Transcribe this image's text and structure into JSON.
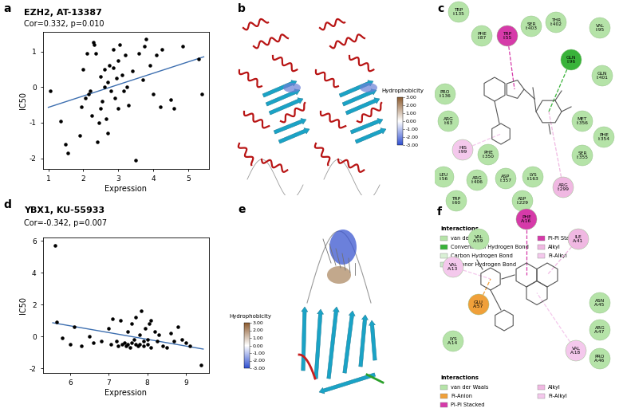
{
  "chart_data": [
    {
      "panel": "a",
      "type": "scatter",
      "title": "EZH2, AT-13387",
      "annotation": "Cor=0.332, p=0.010",
      "x_label": "Expression",
      "y_label": "IC50",
      "color": "#000000",
      "x": [
        1.05,
        1.35,
        1.5,
        1.55,
        1.9,
        1.95,
        2.0,
        2.05,
        2.1,
        2.15,
        2.2,
        2.25,
        2.3,
        2.32,
        2.35,
        2.4,
        2.45,
        2.5,
        2.5,
        2.55,
        2.6,
        2.6,
        2.65,
        2.7,
        2.7,
        2.75,
        2.8,
        2.85,
        2.85,
        2.9,
        2.95,
        3.0,
        3.0,
        3.05,
        3.1,
        3.15,
        3.2,
        3.25,
        3.3,
        3.4,
        3.5,
        3.6,
        3.7,
        3.75,
        3.8,
        3.9,
        4.0,
        4.1,
        4.2,
        4.25,
        4.5,
        4.6,
        4.85,
        5.3,
        5.4
      ],
      "y": [
        -0.1,
        -0.95,
        -1.6,
        -1.85,
        -1.35,
        -0.55,
        0.5,
        -0.3,
        0.95,
        -0.2,
        -0.1,
        -0.8,
        1.25,
        1.2,
        0.95,
        -1.55,
        -1.0,
        -0.6,
        0.3,
        -0.4,
        0.0,
        0.5,
        -0.9,
        0.15,
        -1.3,
        0.6,
        -0.1,
        1.05,
        0.55,
        -0.3,
        0.25,
        0.75,
        -0.6,
        1.2,
        0.35,
        -0.1,
        0.9,
        0.0,
        -0.5,
        0.45,
        -2.05,
        0.95,
        0.2,
        1.15,
        1.35,
        0.6,
        -0.2,
        0.9,
        -0.55,
        1.05,
        -0.35,
        -0.6,
        1.15,
        0.8,
        -0.2
      ],
      "trend_line": {
        "x": [
          1.0,
          5.45
        ],
        "y": [
          -0.57,
          0.85
        ],
        "color": "#3d6fb0"
      },
      "xlim": [
        0.85,
        5.6
      ],
      "ylim": [
        -2.3,
        1.55
      ],
      "xticks": [
        1,
        2,
        3,
        4,
        5
      ],
      "yticks": [
        -2,
        -1,
        0,
        1
      ]
    },
    {
      "panel": "d",
      "type": "scatter",
      "title": "YBX1, KU-55933",
      "annotation": "Cor=-0.342, p=0.007",
      "x_label": "Expression",
      "y_label": "IC50",
      "color": "#000000",
      "x": [
        5.6,
        5.65,
        5.8,
        6.0,
        6.1,
        6.3,
        6.5,
        6.6,
        6.8,
        7.0,
        7.05,
        7.1,
        7.2,
        7.25,
        7.3,
        7.35,
        7.4,
        7.45,
        7.5,
        7.5,
        7.55,
        7.6,
        7.6,
        7.65,
        7.7,
        7.7,
        7.75,
        7.8,
        7.8,
        7.85,
        7.9,
        7.9,
        7.95,
        8.0,
        8.0,
        8.05,
        8.1,
        8.1,
        8.2,
        8.25,
        8.3,
        8.4,
        8.5,
        8.6,
        8.7,
        8.8,
        8.9,
        9.0,
        9.1,
        9.4
      ],
      "y": [
        5.7,
        0.9,
        -0.1,
        -0.5,
        0.6,
        -0.6,
        0.0,
        -0.4,
        -0.3,
        0.5,
        -0.5,
        1.1,
        -0.3,
        -0.6,
        1.0,
        -0.5,
        -0.4,
        -0.6,
        0.3,
        -0.5,
        -0.7,
        0.8,
        -0.4,
        -0.2,
        1.2,
        -0.5,
        -0.6,
        0.1,
        -0.5,
        1.6,
        -0.3,
        -0.6,
        0.5,
        -0.5,
        -0.2,
        0.8,
        1.0,
        -0.7,
        0.3,
        -0.3,
        0.1,
        -0.6,
        -0.7,
        0.2,
        -0.3,
        0.6,
        -0.2,
        -0.4,
        -0.6,
        -1.8
      ],
      "trend_line": {
        "x": [
          5.55,
          9.45
        ],
        "y": [
          0.85,
          -0.8
        ],
        "color": "#3d6fb0"
      },
      "xlim": [
        5.3,
        9.6
      ],
      "ylim": [
        -2.3,
        6.2
      ],
      "xticks": [
        6,
        7,
        8,
        9
      ],
      "yticks": [
        -2,
        0,
        2,
        4,
        6
      ]
    }
  ],
  "structure_panels": [
    {
      "panel": "b",
      "colorbar": {
        "label": "Hydrophobicity",
        "range": [
          -3,
          3
        ],
        "ticks": [
          {
            "value": 3,
            "label": "3.00"
          },
          {
            "value": 2,
            "label": "2.00"
          },
          {
            "value": 1,
            "label": "1.00"
          },
          {
            "value": 0,
            "label": "0.00"
          },
          {
            "value": -1,
            "label": "-1.00"
          },
          {
            "value": -2,
            "label": "-2.00"
          },
          {
            "value": -3,
            "label": "-3.00"
          }
        ]
      }
    },
    {
      "panel": "e",
      "colorbar": {
        "label": "Hydrophobicity",
        "range": [
          -3,
          3
        ],
        "ticks": [
          {
            "value": 3,
            "label": "3.00"
          },
          {
            "value": 2,
            "label": "2.00"
          },
          {
            "value": 1,
            "label": "1.00"
          },
          {
            "value": 0,
            "label": "0.00"
          },
          {
            "value": -1,
            "label": "-1.00"
          },
          {
            "value": -2,
            "label": "-2.00"
          },
          {
            "value": -3,
            "label": "-3.00"
          }
        ]
      }
    }
  ],
  "interaction_panels": [
    {
      "panel": "c",
      "legend_title": "Interactions",
      "interactions": [
        {
          "name": "van der Waals",
          "color": "#b5e3a8"
        },
        {
          "name": "Conventional Hydrogen Bond",
          "color": "#39b33a"
        },
        {
          "name": "Carbon Hydrogen Bond",
          "color": "#d9f0d5"
        },
        {
          "name": "Pi-Donor Hydrogen Bond",
          "color": "#cde8cd"
        },
        {
          "name": "Pi-Pi Stacked",
          "color": "#d63aa9"
        },
        {
          "name": "Alkyl",
          "color": "#f0b8e2"
        },
        {
          "name": "Pi-Alkyl",
          "color": "#f4c8ec"
        }
      ],
      "residues": [
        {
          "residue": "TRP",
          "id": "I:135",
          "interaction": "van der Waals"
        },
        {
          "residue": "PHE",
          "id": "I:87",
          "interaction": "van der Waals"
        },
        {
          "residue": "TRP",
          "id": "I:55",
          "interaction": "Pi-Pi Stacked"
        },
        {
          "residue": "SER",
          "id": "I:403",
          "interaction": "van der Waals"
        },
        {
          "residue": "THR",
          "id": "I:402",
          "interaction": "van der Waals"
        },
        {
          "residue": "VAL",
          "id": "I:95",
          "interaction": "van der Waals"
        },
        {
          "residue": "GLN",
          "id": "I:96",
          "interaction": "Conventional Hydrogen Bond"
        },
        {
          "residue": "GLN",
          "id": "I:401",
          "interaction": "van der Waals"
        },
        {
          "residue": "MET",
          "id": "I:356",
          "interaction": "van der Waals"
        },
        {
          "residue": "PHE",
          "id": "I:354",
          "interaction": "van der Waals"
        },
        {
          "residue": "SER",
          "id": "I:355",
          "interaction": "van der Waals"
        },
        {
          "residue": "ARG",
          "id": "I:299",
          "interaction": "Alkyl"
        },
        {
          "residue": "LYS",
          "id": "I:163",
          "interaction": "van der Waals"
        },
        {
          "residue": "ASP",
          "id": "I:357",
          "interaction": "van der Waals"
        },
        {
          "residue": "PHE",
          "id": "I:350",
          "interaction": "van der Waals"
        },
        {
          "residue": "ARG",
          "id": "I:406",
          "interaction": "van der Waals"
        },
        {
          "residue": "ASP",
          "id": "I:229",
          "interaction": "van der Waals"
        },
        {
          "residue": "TRP",
          "id": "I:60",
          "interaction": "van der Waals"
        },
        {
          "residue": "LEU",
          "id": "I:56",
          "interaction": "van der Waals"
        },
        {
          "residue": "HIS",
          "id": "I:99",
          "interaction": "Pi-Alkyl"
        },
        {
          "residue": "ARG",
          "id": "I:63",
          "interaction": "van der Waals"
        },
        {
          "residue": "PRO",
          "id": "I:136",
          "interaction": "van der Waals"
        }
      ]
    },
    {
      "panel": "f",
      "legend_title": "Interactions",
      "interactions": [
        {
          "name": "van der Waals",
          "color": "#b5e3a8"
        },
        {
          "name": "Pi-Anion",
          "color": "#f0a03a"
        },
        {
          "name": "Pi-Pi Stacked",
          "color": "#d63aa9"
        },
        {
          "name": "Alkyl",
          "color": "#f0b8e2"
        },
        {
          "name": "Pi-Alkyl",
          "color": "#f4c8ec"
        }
      ],
      "residues": [
        {
          "residue": "VAL",
          "id": "A:59",
          "interaction": "van der Waals"
        },
        {
          "residue": "PHE",
          "id": "A:16",
          "interaction": "Pi-Pi Stacked"
        },
        {
          "residue": "ILE",
          "id": "A:41",
          "interaction": "Alkyl"
        },
        {
          "residue": "VAL",
          "id": "A:13",
          "interaction": "Pi-Alkyl"
        },
        {
          "residue": "GLU",
          "id": "A:57",
          "interaction": "Pi-Anion"
        },
        {
          "residue": "ASN",
          "id": "A:45",
          "interaction": "van der Waals"
        },
        {
          "residue": "LYS",
          "id": "A:14",
          "interaction": "van der Waals"
        },
        {
          "residue": "ARG",
          "id": "A:47",
          "interaction": "van der Waals"
        },
        {
          "residue": "VAL",
          "id": "A:18",
          "interaction": "Pi-Alkyl"
        },
        {
          "residue": "PRO",
          "id": "A:46",
          "interaction": "van der Waals"
        }
      ]
    }
  ]
}
